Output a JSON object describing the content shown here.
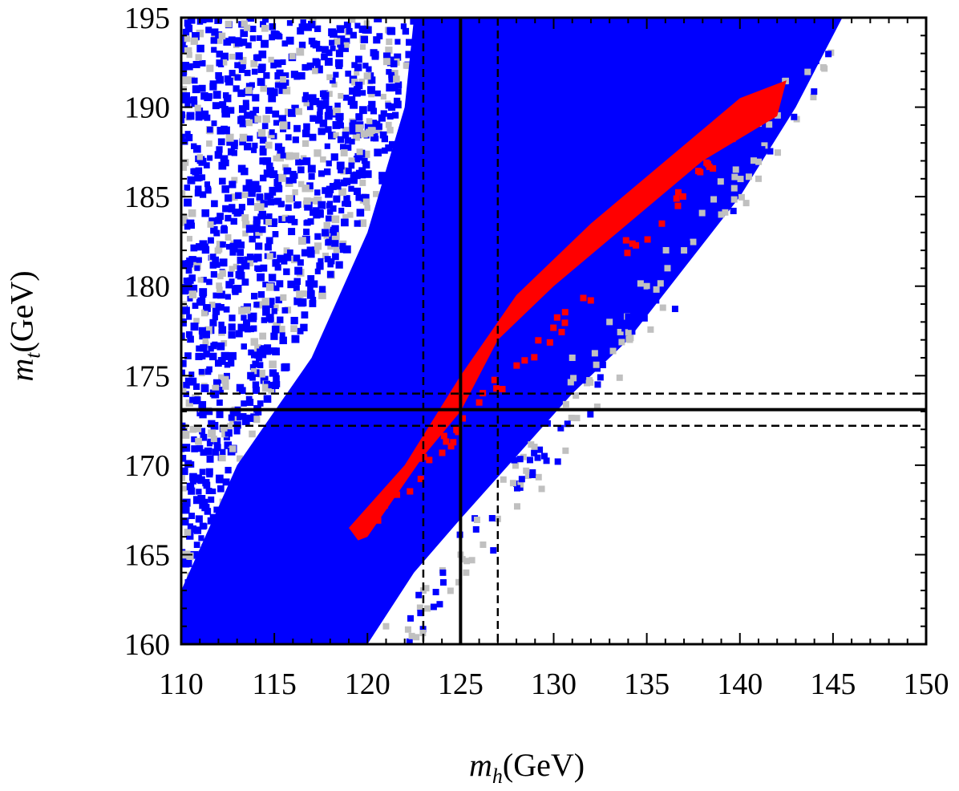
{
  "chart_data": {
    "type": "scatter",
    "title": "",
    "xlabel": {
      "symbol": "m",
      "sub": "h",
      "unit": "(GeV)"
    },
    "ylabel": {
      "symbol": "m",
      "sub": "t",
      "unit": "(GeV)"
    },
    "xlim": [
      110,
      150
    ],
    "ylim": [
      160,
      195
    ],
    "xticks": [
      "110",
      "115",
      "120",
      "125",
      "130",
      "135",
      "140",
      "145",
      "150"
    ],
    "yticks": [
      "160",
      "165",
      "170",
      "175",
      "180",
      "185",
      "190",
      "195"
    ],
    "grid": false,
    "legend": "none",
    "reference_lines": {
      "vertical": [
        {
          "x": 125,
          "style": "solid"
        },
        {
          "x": 123,
          "style": "dashed"
        },
        {
          "x": 127,
          "style": "dashed"
        }
      ],
      "horizontal": [
        {
          "y": 173.1,
          "style": "solid"
        },
        {
          "y": 174.0,
          "style": "dashed"
        },
        {
          "y": 172.2,
          "style": "dashed"
        }
      ]
    },
    "series": [
      {
        "color": "#c0c0c0",
        "region_desc_points": [
          [
            110,
            160
          ],
          [
            110,
            195
          ],
          [
            124,
            195
          ],
          [
            121,
            185
          ],
          [
            117,
            178
          ],
          [
            113,
            170
          ],
          [
            119,
            160
          ]
        ],
        "edge_points": [
          [
            131,
            176
          ],
          [
            133,
            178
          ],
          [
            135,
            180
          ],
          [
            137,
            182
          ],
          [
            139,
            184
          ],
          [
            141,
            186
          ],
          [
            125,
            165
          ],
          [
            127,
            167
          ],
          [
            123,
            163
          ],
          [
            121,
            161
          ]
        ]
      },
      {
        "color": "#0000ff",
        "dense_region": [
          [
            110,
            160
          ],
          [
            110,
            163
          ],
          [
            113,
            170
          ],
          [
            117,
            176
          ],
          [
            120,
            183
          ],
          [
            122,
            190
          ],
          [
            122.5,
            195
          ],
          [
            145.5,
            195
          ],
          [
            143,
            190
          ],
          [
            140,
            185
          ],
          [
            137,
            181
          ],
          [
            134,
            177
          ],
          [
            131,
            174
          ],
          [
            128,
            170.5
          ],
          [
            125,
            167
          ],
          [
            122.5,
            164
          ],
          [
            120,
            160
          ]
        ],
        "sparse_region": [
          [
            110,
            160
          ],
          [
            110,
            195
          ],
          [
            123,
            195
          ],
          [
            121,
            186
          ],
          [
            117,
            178
          ],
          [
            113,
            170
          ]
        ]
      },
      {
        "color": "#ff0000",
        "band": [
          [
            119,
            166.5
          ],
          [
            122,
            170
          ],
          [
            125,
            175
          ],
          [
            128,
            179.5
          ],
          [
            132,
            183.5
          ],
          [
            136,
            187
          ],
          [
            140,
            190.5
          ],
          [
            142.5,
            191.5
          ],
          [
            142,
            189.5
          ],
          [
            138,
            187
          ],
          [
            134,
            183.5
          ],
          [
            130,
            180
          ],
          [
            127,
            177
          ],
          [
            125,
            173
          ],
          [
            123,
            170.5
          ],
          [
            120,
            166
          ],
          [
            119.5,
            165.8
          ]
        ]
      }
    ]
  }
}
